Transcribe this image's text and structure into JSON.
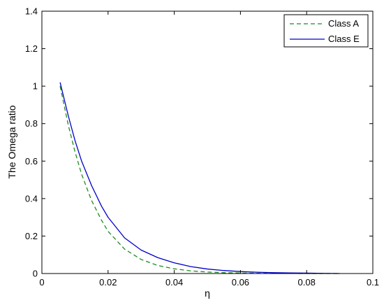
{
  "chart_data": {
    "type": "line",
    "title": "",
    "xlabel": "η",
    "ylabel": "The Omega ratio",
    "xlim": [
      0,
      0.1
    ],
    "ylim": [
      0,
      1.4
    ],
    "xticks": [
      0,
      0.02,
      0.04,
      0.06,
      0.08,
      0.1
    ],
    "xtick_labels": [
      "0",
      "0.02",
      "0.04",
      "0.06",
      "0.08",
      "0.1"
    ],
    "yticks": [
      0,
      0.2,
      0.4,
      0.6,
      0.8,
      1,
      1.2,
      1.4
    ],
    "ytick_labels": [
      "0",
      "0.2",
      "0.4",
      "0.6",
      "0.8",
      "1",
      "1.2",
      "1.4"
    ],
    "grid": false,
    "legend_position": "top-right",
    "series": [
      {
        "name": "Class A",
        "color": "#1f8a1f",
        "style": "dashed",
        "x": [
          0.0055,
          0.008,
          0.01,
          0.012,
          0.015,
          0.018,
          0.02,
          0.025,
          0.03,
          0.035,
          0.04,
          0.045,
          0.05,
          0.055,
          0.06,
          0.065,
          0.07,
          0.075,
          0.08,
          0.085,
          0.09
        ],
        "y": [
          1.0,
          0.79,
          0.65,
          0.53,
          0.39,
          0.285,
          0.225,
          0.13,
          0.075,
          0.043,
          0.025,
          0.014,
          0.008,
          0.0045,
          0.0025,
          0.0015,
          0.0008,
          0.0004,
          0.0002,
          0.0001,
          0.0
        ]
      },
      {
        "name": "Class E",
        "color": "#0000cc",
        "style": "solid",
        "x": [
          0.0055,
          0.008,
          0.01,
          0.012,
          0.015,
          0.018,
          0.02,
          0.025,
          0.03,
          0.035,
          0.04,
          0.045,
          0.05,
          0.055,
          0.06,
          0.065,
          0.07,
          0.075,
          0.08,
          0.085,
          0.09
        ],
        "y": [
          1.02,
          0.84,
          0.71,
          0.6,
          0.47,
          0.36,
          0.3,
          0.19,
          0.125,
          0.085,
          0.057,
          0.037,
          0.024,
          0.016,
          0.0105,
          0.007,
          0.0045,
          0.003,
          0.002,
          0.001,
          0.0
        ]
      }
    ]
  }
}
